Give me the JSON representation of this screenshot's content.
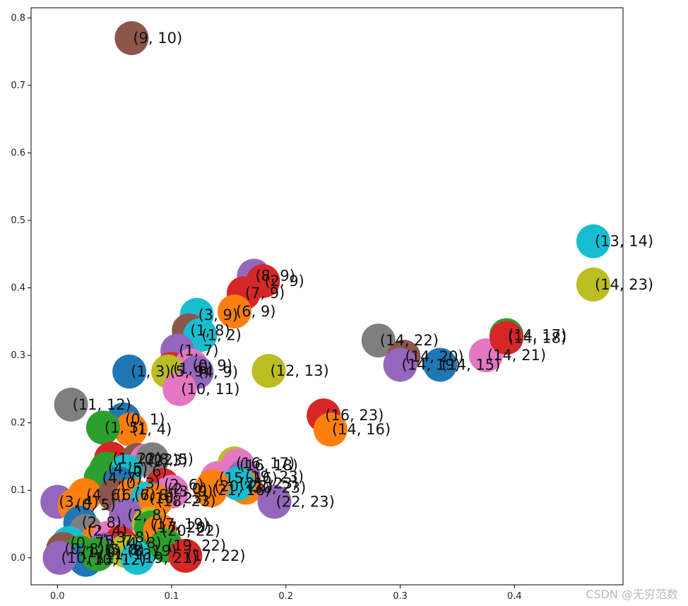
{
  "watermark": "CSDN @无穷范数",
  "chart_data": {
    "type": "scatter",
    "title": "",
    "xlabel": "",
    "ylabel": "",
    "xlim": [
      -0.023,
      0.495
    ],
    "ylim": [
      -0.04,
      0.815
    ],
    "xticks": [
      0.0,
      0.1,
      0.2,
      0.3,
      0.4
    ],
    "yticks": [
      0.0,
      0.1,
      0.2,
      0.3,
      0.4,
      0.5,
      0.6,
      0.7,
      0.8
    ],
    "grid": false,
    "colors": [
      "#1f77b4",
      "#ff7f0e",
      "#2ca02c",
      "#d62728",
      "#9467bd",
      "#8c564b",
      "#e377c2",
      "#7f7f7f",
      "#bcbd22",
      "#17becf"
    ],
    "points": [
      {
        "x": 0.065,
        "y": 0.77,
        "label": "(9, 10)",
        "color": "#8c564b"
      },
      {
        "x": 0.469,
        "y": 0.469,
        "label": "(13, 14)",
        "color": "#17becf"
      },
      {
        "x": 0.469,
        "y": 0.405,
        "label": "(14, 23)",
        "color": "#bcbd22"
      },
      {
        "x": 0.172,
        "y": 0.418,
        "label": "(8, 9)",
        "color": "#9467bd"
      },
      {
        "x": 0.18,
        "y": 0.41,
        "label": "(2, 9)",
        "color": "#d62728"
      },
      {
        "x": 0.163,
        "y": 0.392,
        "label": "(7, 9)",
        "color": "#d62728"
      },
      {
        "x": 0.155,
        "y": 0.365,
        "label": "(6, 9)",
        "color": "#ff7f0e"
      },
      {
        "x": 0.122,
        "y": 0.36,
        "label": "(3, 9)",
        "color": "#17becf"
      },
      {
        "x": 0.115,
        "y": 0.337,
        "label": "(1, 8)",
        "color": "#8c564b"
      },
      {
        "x": 0.125,
        "y": 0.33,
        "label": "(1, 2)",
        "color": "#17becf"
      },
      {
        "x": 0.105,
        "y": 0.307,
        "label": "(1, 7)",
        "color": "#9467bd"
      },
      {
        "x": 0.063,
        "y": 0.276,
        "label": "(1, 3)",
        "color": "#1f77b4"
      },
      {
        "x": 0.1,
        "y": 0.28,
        "label": "(1, 6)",
        "color": "#d62728"
      },
      {
        "x": 0.117,
        "y": 0.285,
        "label": "(0, 9)",
        "color": "#e377c2"
      },
      {
        "x": 0.097,
        "y": 0.276,
        "label": "(5, 9)",
        "color": "#bcbd22"
      },
      {
        "x": 0.122,
        "y": 0.275,
        "label": "(4, 9)",
        "color": "#9467bd"
      },
      {
        "x": 0.107,
        "y": 0.25,
        "label": "(10, 11)",
        "color": "#e377c2"
      },
      {
        "x": 0.185,
        "y": 0.277,
        "label": "(12, 13)",
        "color": "#bcbd22"
      },
      {
        "x": 0.281,
        "y": 0.322,
        "label": "(14, 22)",
        "color": "#7f7f7f"
      },
      {
        "x": 0.303,
        "y": 0.298,
        "label": "(14, 20)",
        "color": "#8c564b"
      },
      {
        "x": 0.3,
        "y": 0.286,
        "label": "(14, 19)",
        "color": "#9467bd"
      },
      {
        "x": 0.335,
        "y": 0.286,
        "label": "(14, 15)",
        "color": "#1f77b4"
      },
      {
        "x": 0.375,
        "y": 0.3,
        "label": "(14, 21)",
        "color": "#e377c2"
      },
      {
        "x": 0.393,
        "y": 0.33,
        "label": "(14, 17)",
        "color": "#2ca02c"
      },
      {
        "x": 0.393,
        "y": 0.326,
        "label": "(14, 18)",
        "color": "#d62728"
      },
      {
        "x": 0.012,
        "y": 0.227,
        "label": "(11, 12)",
        "color": "#7f7f7f"
      },
      {
        "x": 0.058,
        "y": 0.205,
        "label": "(0, 1)",
        "color": "#1f77b4"
      },
      {
        "x": 0.064,
        "y": 0.19,
        "label": "(1, 4)",
        "color": "#ff7f0e"
      },
      {
        "x": 0.04,
        "y": 0.193,
        "label": "(1, 5)",
        "color": "#2ca02c"
      },
      {
        "x": 0.233,
        "y": 0.211,
        "label": "(16, 23)",
        "color": "#d62728"
      },
      {
        "x": 0.239,
        "y": 0.19,
        "label": "(14, 16)",
        "color": "#ff7f0e"
      },
      {
        "x": 0.155,
        "y": 0.14,
        "label": "(16, 17)",
        "color": "#bcbd22"
      },
      {
        "x": 0.158,
        "y": 0.137,
        "label": "(16, 18)",
        "color": "#e377c2"
      },
      {
        "x": 0.14,
        "y": 0.118,
        "label": "(15, 16)",
        "color": "#e377c2"
      },
      {
        "x": 0.163,
        "y": 0.12,
        "label": "(19, 23)",
        "color": "#9467bd"
      },
      {
        "x": 0.165,
        "y": 0.104,
        "label": "(20, 23)",
        "color": "#ff7f0e"
      },
      {
        "x": 0.158,
        "y": 0.11,
        "label": "(21, 23)",
        "color": "#17becf"
      },
      {
        "x": 0.136,
        "y": 0.106,
        "label": "(20, 22)",
        "color": "#ff7f0e"
      },
      {
        "x": 0.134,
        "y": 0.1,
        "label": "(21, 16)",
        "color": "#ff7f0e"
      },
      {
        "x": 0.19,
        "y": 0.083,
        "label": "(22, 23)",
        "color": "#9467bd"
      },
      {
        "x": 0.047,
        "y": 0.147,
        "label": "(1, 22)",
        "color": "#d62728"
      },
      {
        "x": 0.07,
        "y": 0.145,
        "label": "(0, 2)",
        "color": "#8c564b"
      },
      {
        "x": 0.078,
        "y": 0.144,
        "label": "(2, 3)",
        "color": "#e377c2"
      },
      {
        "x": 0.083,
        "y": 0.146,
        "label": "(8, 5)",
        "color": "#7f7f7f"
      },
      {
        "x": 0.043,
        "y": 0.132,
        "label": "(4, 5)",
        "color": "#2ca02c"
      },
      {
        "x": 0.06,
        "y": 0.128,
        "label": "(0, 6)",
        "color": "#17becf"
      },
      {
        "x": 0.038,
        "y": 0.118,
        "label": "(4, 7)",
        "color": "#2ca02c"
      },
      {
        "x": 0.054,
        "y": 0.11,
        "label": "(0, 3)",
        "color": "#1f77b4"
      },
      {
        "x": 0.092,
        "y": 0.108,
        "label": "(2, 6)",
        "color": "#d62728"
      },
      {
        "x": 0.095,
        "y": 0.102,
        "label": "(2, 0)",
        "color": "#d62728"
      },
      {
        "x": 0.1,
        "y": 0.098,
        "label": "(3, 9)",
        "color": "#e377c2"
      },
      {
        "x": 0.0,
        "y": 0.083,
        "label": "(3, 4)",
        "color": "#9467bd"
      },
      {
        "x": 0.024,
        "y": 0.093,
        "label": "(4, 6)",
        "color": "#ff7f0e"
      },
      {
        "x": 0.05,
        "y": 0.093,
        "label": "(6, 7)",
        "color": "#8c564b"
      },
      {
        "x": 0.066,
        "y": 0.093,
        "label": "(6, 8)",
        "color": "#ff7f0e"
      },
      {
        "x": 0.079,
        "y": 0.088,
        "label": "(16, 23)",
        "color": "#17becf"
      },
      {
        "x": 0.086,
        "y": 0.084,
        "label": "(18, 23)",
        "color": "#ff7f0e"
      },
      {
        "x": 0.015,
        "y": 0.078,
        "label": "(0, 5)",
        "color": "#ff7f0e"
      },
      {
        "x": 0.06,
        "y": 0.063,
        "label": "(2, 8)",
        "color": "#9467bd"
      },
      {
        "x": 0.08,
        "y": 0.05,
        "label": "(17, 19)",
        "color": "#bcbd22"
      },
      {
        "x": 0.082,
        "y": 0.045,
        "label": "(17, 20)",
        "color": "#2ca02c"
      },
      {
        "x": 0.09,
        "y": 0.04,
        "label": "(20, 22)",
        "color": "#ff7f0e"
      },
      {
        "x": 0.02,
        "y": 0.052,
        "label": "(2, 8)",
        "color": "#1f77b4"
      },
      {
        "x": 0.025,
        "y": 0.04,
        "label": "(2, 4)",
        "color": "#7f7f7f"
      },
      {
        "x": 0.035,
        "y": 0.025,
        "label": "(5, 7)",
        "color": "#ff7f0e"
      },
      {
        "x": 0.045,
        "y": 0.03,
        "label": "(3, 8)",
        "color": "#e377c2"
      },
      {
        "x": 0.055,
        "y": 0.022,
        "label": "(4, 8)",
        "color": "#d62728"
      },
      {
        "x": 0.01,
        "y": 0.022,
        "label": "(0, 7)",
        "color": "#17becf"
      },
      {
        "x": 0.005,
        "y": 0.013,
        "label": "(0, 8)",
        "color": "#8c564b"
      },
      {
        "x": 0.02,
        "y": 0.008,
        "label": "(1, 9)",
        "color": "#2ca02c"
      },
      {
        "x": 0.04,
        "y": 0.012,
        "label": "(5, 8)",
        "color": "#9467bd"
      },
      {
        "x": 0.06,
        "y": 0.01,
        "label": "(8, 19)",
        "color": "#bcbd22"
      },
      {
        "x": 0.07,
        "y": 0.0,
        "label": "(19, 21)",
        "color": "#17becf"
      },
      {
        "x": 0.095,
        "y": 0.018,
        "label": "(19, 22)",
        "color": "#2ca02c"
      },
      {
        "x": 0.112,
        "y": 0.003,
        "label": "(17, 22)",
        "color": "#d62728"
      },
      {
        "x": 0.025,
        "y": -0.003,
        "label": "(10, 12)",
        "color": "#1f77b4"
      },
      {
        "x": 0.002,
        "y": 0.0,
        "label": "(10, 11)",
        "color": "#9467bd"
      },
      {
        "x": 0.035,
        "y": 0.005,
        "label": "(11, 13)",
        "color": "#2ca02c"
      }
    ]
  }
}
